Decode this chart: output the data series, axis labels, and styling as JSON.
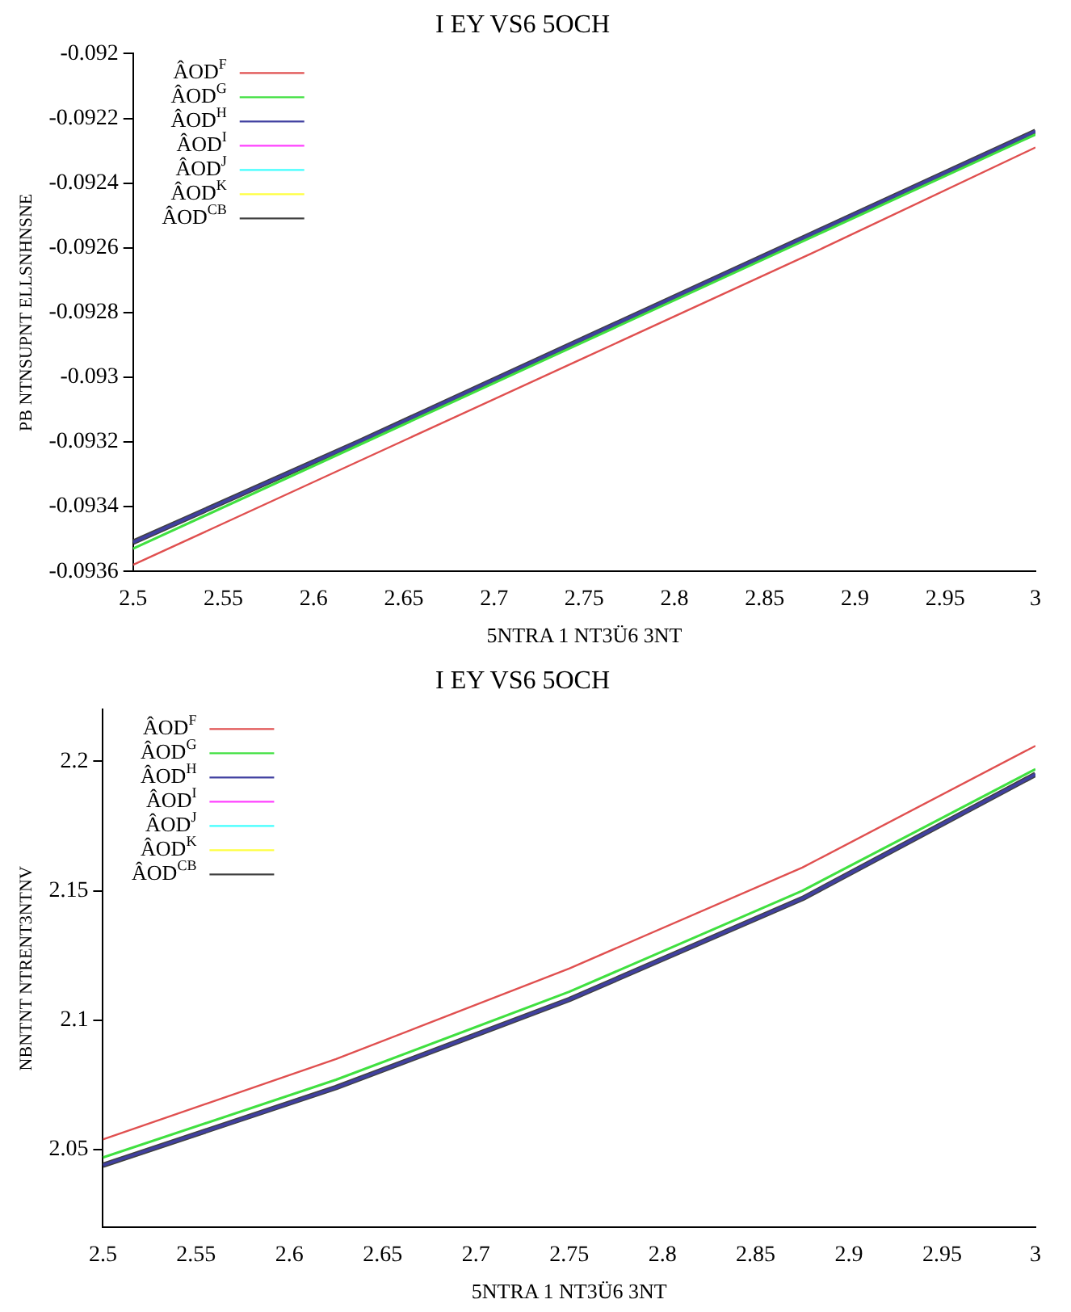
{
  "chart_data": [
    {
      "type": "line",
      "title": "I EY VS6 5OCH",
      "xlabel": "5NTRA 1 NT3Ü6 3NT",
      "ylabel": "PB NTNSUPNT ELLSNHNSNE",
      "x": [
        2.5,
        2.625,
        2.75,
        2.875,
        3
      ],
      "xlim": [
        2.5,
        3
      ],
      "xticks": [
        2.5,
        2.55,
        2.6,
        2.65,
        2.7,
        2.75,
        2.8,
        2.85,
        2.9,
        2.95,
        3
      ],
      "ylim": [
        -0.0936,
        -0.092
      ],
      "yticks": [
        -0.092,
        -0.0922,
        -0.0924,
        -0.0926,
        -0.0928,
        -0.093,
        -0.0932,
        -0.0934,
        -0.0936
      ],
      "legend": "top left",
      "grid": false,
      "marker": "none",
      "line_style": "solid",
      "series": [
        {
          "name": "ÂOD$^{F}$",
          "color": "#e05050",
          "values": [
            -0.09358,
            -0.09326,
            -0.09294,
            -0.09262,
            -0.09229
          ]
        },
        {
          "name": "ÂOD$^{G}$",
          "color": "#40e040",
          "values": [
            -0.09353,
            -0.09321,
            -0.09289,
            -0.09257,
            -0.09225
          ]
        },
        {
          "name": "ÂOD$^{H}$",
          "color": "#4040a0",
          "values": [
            -0.09351,
            -0.0932,
            -0.09288,
            -0.09256,
            -0.09224
          ]
        },
        {
          "name": "ÂOD$^{I}$",
          "color": "#ff40ff",
          "values": [
            null,
            null,
            null,
            null,
            null
          ]
        },
        {
          "name": "ÂOD$^{J}$",
          "color": "#40ffff",
          "values": [
            null,
            null,
            null,
            null,
            null
          ]
        },
        {
          "name": "ÂOD$^{K}$",
          "color": "#ffff40",
          "values": [
            null,
            null,
            null,
            null,
            null
          ]
        },
        {
          "name": "ÂOD$^{CB}$",
          "color": "#404040",
          "values": [
            -0.09351,
            -0.0932,
            -0.09288,
            -0.09256,
            -0.09224
          ]
        }
      ]
    },
    {
      "type": "line",
      "title": "I EY VS6 5OCH",
      "xlabel": "5NTRA 1 NT3Ü6 3NT",
      "ylabel": "NBNTNT NTRENT3NTNV",
      "x": [
        2.5,
        2.625,
        2.75,
        2.875,
        3
      ],
      "xlim": [
        2.5,
        3
      ],
      "xticks": [
        2.5,
        2.55,
        2.6,
        2.65,
        2.7,
        2.75,
        2.8,
        2.85,
        2.9,
        2.95,
        3
      ],
      "ylim": [
        2.02,
        2.22
      ],
      "yticks": [
        2.05,
        2.1,
        2.15,
        2.2
      ],
      "legend": "top left",
      "grid": false,
      "marker": "none",
      "line_style": "solid",
      "series": [
        {
          "name": "ÂOD$^{F}$",
          "color": "#e05050",
          "values": [
            2.054,
            2.085,
            2.12,
            2.159,
            2.206
          ]
        },
        {
          "name": "ÂOD$^{G}$",
          "color": "#40e040",
          "values": [
            2.047,
            2.077,
            2.111,
            2.15,
            2.197
          ]
        },
        {
          "name": "ÂOD$^{H}$",
          "color": "#4040a0",
          "values": [
            2.044,
            2.074,
            2.108,
            2.147,
            2.195
          ]
        },
        {
          "name": "ÂOD$^{I}$",
          "color": "#ff40ff",
          "values": [
            null,
            null,
            null,
            null,
            null
          ]
        },
        {
          "name": "ÂOD$^{J}$",
          "color": "#40ffff",
          "values": [
            null,
            null,
            null,
            null,
            null
          ]
        },
        {
          "name": "ÂOD$^{K}$",
          "color": "#ffff40",
          "values": [
            null,
            null,
            null,
            null,
            null
          ]
        },
        {
          "name": "ÂOD$^{CB}$",
          "color": "#404040",
          "values": [
            2.044,
            2.074,
            2.108,
            2.147,
            2.195
          ]
        }
      ]
    }
  ]
}
